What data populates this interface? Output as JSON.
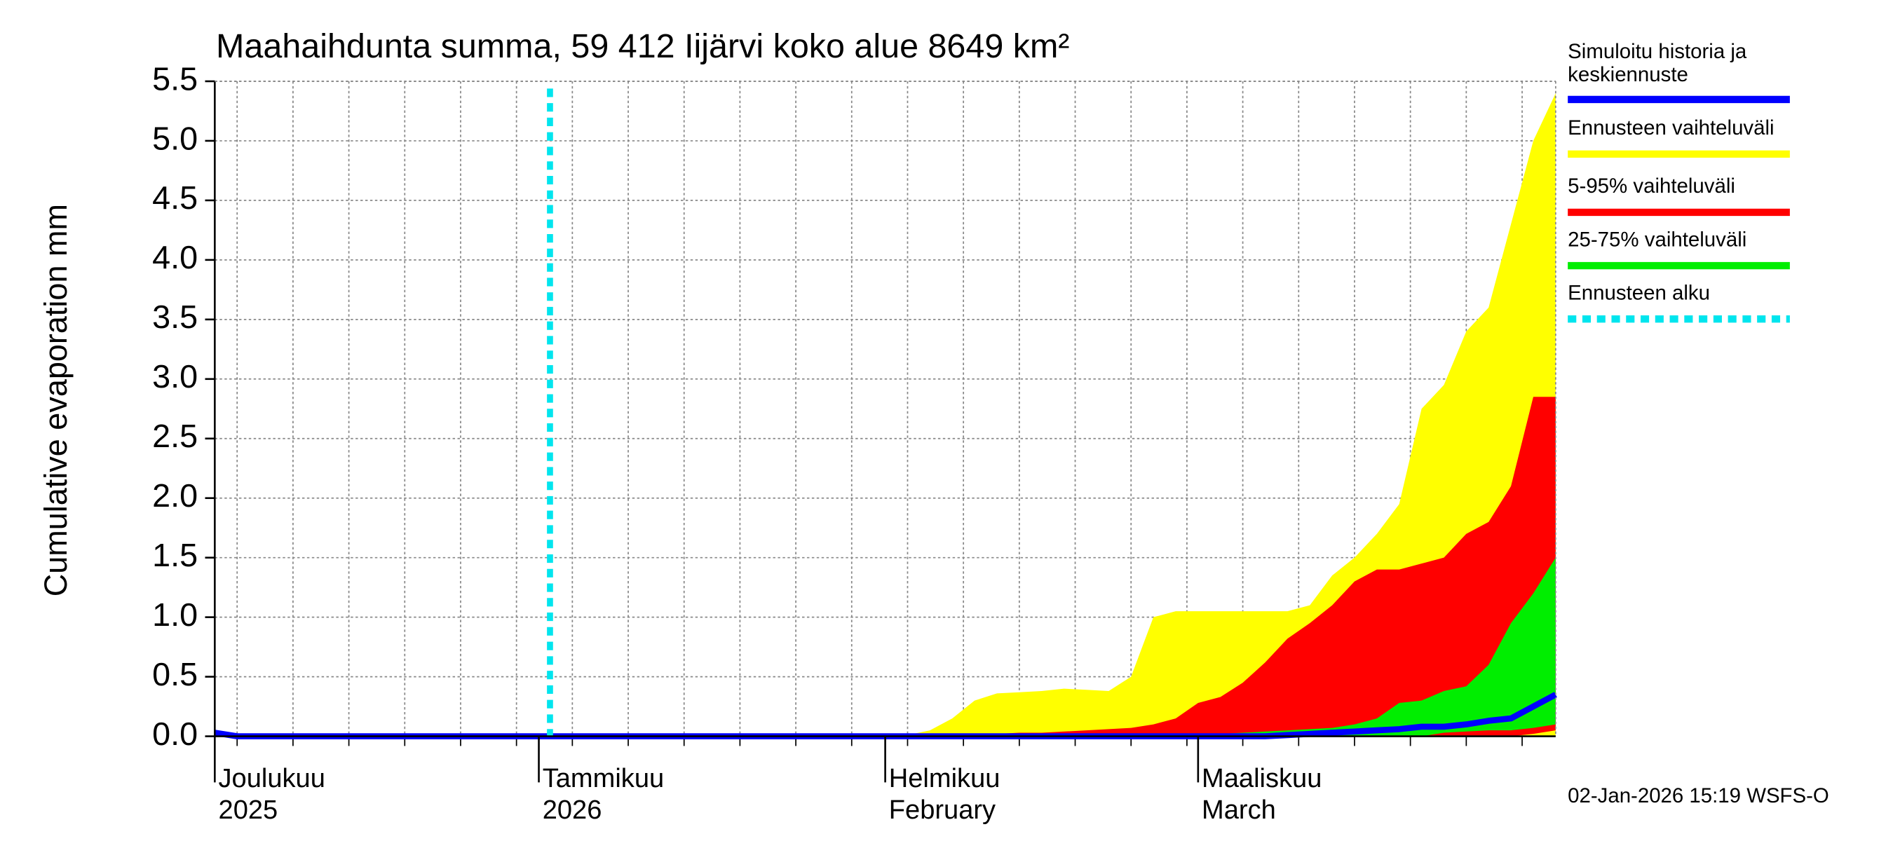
{
  "chart_data": {
    "type": "band",
    "title": "Maahaihdunta summa, 59 412 Iijärvi koko alue 8649 km²",
    "y_label": "Cumulative evaporation   mm",
    "footer": "02-Jan-2026 15:19 WSFS-O",
    "x": [
      0,
      2,
      30,
      60,
      62,
      64,
      66,
      68,
      70,
      72,
      74,
      76,
      78,
      80,
      82,
      84,
      86,
      88,
      90,
      92,
      94,
      96,
      98,
      100,
      102,
      104,
      106,
      108,
      110,
      112,
      114,
      116,
      118,
      120
    ],
    "xlim": [
      0,
      120
    ],
    "xticks": [
      {
        "value": 0,
        "label": "Joulukuu"
      },
      {
        "value": 29,
        "label": "Tammikuu"
      },
      {
        "value": 60,
        "label": "Helmikuu"
      },
      {
        "value": 88,
        "label": "Maaliskuu"
      }
    ],
    "xtick_sublabels": [
      "2025",
      "2026",
      "February",
      "March"
    ],
    "xgrid": [
      2,
      7,
      12,
      17,
      22,
      27,
      32,
      37,
      42,
      47,
      52,
      57,
      62,
      67,
      72,
      77,
      82,
      87,
      92,
      97,
      102,
      107,
      112,
      117
    ],
    "ylim": [
      0,
      5.5
    ],
    "yticks": [
      {
        "value": 0,
        "label": "0.0"
      },
      0.5,
      {
        "value": 1,
        "label": "1.0"
      },
      1.5,
      {
        "value": 2,
        "label": "2.0"
      },
      2.5,
      {
        "value": 3,
        "label": "3.0"
      },
      3.5,
      {
        "value": 4,
        "label": "4.0"
      },
      4.5,
      {
        "value": 5,
        "label": "5.0"
      },
      5.5
    ],
    "grid": true,
    "forecast_start": {
      "name": "Ennusteen alku",
      "color": "#00e5ee",
      "x": 30
    },
    "bands": [
      {
        "name": "Ennusteen vaihteluväli",
        "color": "#ffff00",
        "high": [
          0,
          0,
          0,
          0,
          0.01,
          0.05,
          0.15,
          0.3,
          0.36,
          0.37,
          0.38,
          0.4,
          0.39,
          0.38,
          0.5,
          1.0,
          1.05,
          1.05,
          1.05,
          1.05,
          1.05,
          1.05,
          1.1,
          1.35,
          1.5,
          1.7,
          1.95,
          2.75,
          2.95,
          3.4,
          3.6,
          4.3,
          5.0,
          5.4
        ],
        "low": [
          0,
          0,
          0,
          0,
          0,
          0,
          0,
          0,
          0,
          0,
          0,
          0,
          0,
          0,
          0,
          0,
          0,
          0,
          0,
          0,
          0,
          0,
          0,
          0,
          0,
          0,
          0,
          0,
          0,
          0,
          0,
          0,
          0,
          0
        ]
      },
      {
        "name": "5-95% vaihteluväli",
        "color": "#ff0000",
        "high": [
          0,
          0,
          0,
          0,
          0,
          0.01,
          0.01,
          0.02,
          0.02,
          0.03,
          0.03,
          0.04,
          0.05,
          0.06,
          0.07,
          0.1,
          0.15,
          0.28,
          0.33,
          0.45,
          0.62,
          0.82,
          0.95,
          1.1,
          1.3,
          1.4,
          1.4,
          1.45,
          1.5,
          1.7,
          1.8,
          2.1,
          2.85,
          2.85
        ],
        "low": [
          0,
          0,
          0,
          0,
          0,
          0,
          0,
          0,
          0,
          0,
          0,
          0,
          0,
          0,
          0,
          0,
          0,
          0,
          0,
          0,
          0,
          0,
          0,
          0,
          0,
          0,
          0,
          0,
          0,
          0,
          0,
          0,
          0.02,
          0.05
        ]
      },
      {
        "name": "25-75% vaihteluväli",
        "color": "#00ee00",
        "high": [
          0,
          0,
          0,
          0,
          0,
          0,
          0,
          0,
          0,
          0,
          0,
          0,
          0,
          0,
          0,
          0,
          0,
          0.01,
          0.02,
          0.03,
          0.04,
          0.05,
          0.06,
          0.07,
          0.1,
          0.15,
          0.28,
          0.3,
          0.38,
          0.42,
          0.6,
          0.95,
          1.2,
          1.5
        ],
        "low": [
          0,
          0,
          0,
          0,
          0,
          0,
          0,
          0,
          0,
          0,
          0,
          0,
          0,
          0,
          0,
          0,
          0,
          0,
          0,
          0,
          0,
          0,
          0,
          0,
          0,
          0,
          0,
          0,
          0.03,
          0.04,
          0.05,
          0.05,
          0.07,
          0.1
        ]
      }
    ],
    "series": [
      {
        "name": "Simuloitu historia ja keskiennuste",
        "color": "#0000ff",
        "values": [
          0.03,
          0,
          0,
          0,
          0,
          0,
          0,
          0,
          0,
          0,
          0,
          0,
          0,
          0,
          0,
          0,
          0,
          0,
          0,
          0,
          0,
          0.01,
          0.02,
          0.03,
          0.04,
          0.05,
          0.06,
          0.08,
          0.08,
          0.1,
          0.13,
          0.15,
          0.25,
          0.35
        ]
      }
    ]
  }
}
